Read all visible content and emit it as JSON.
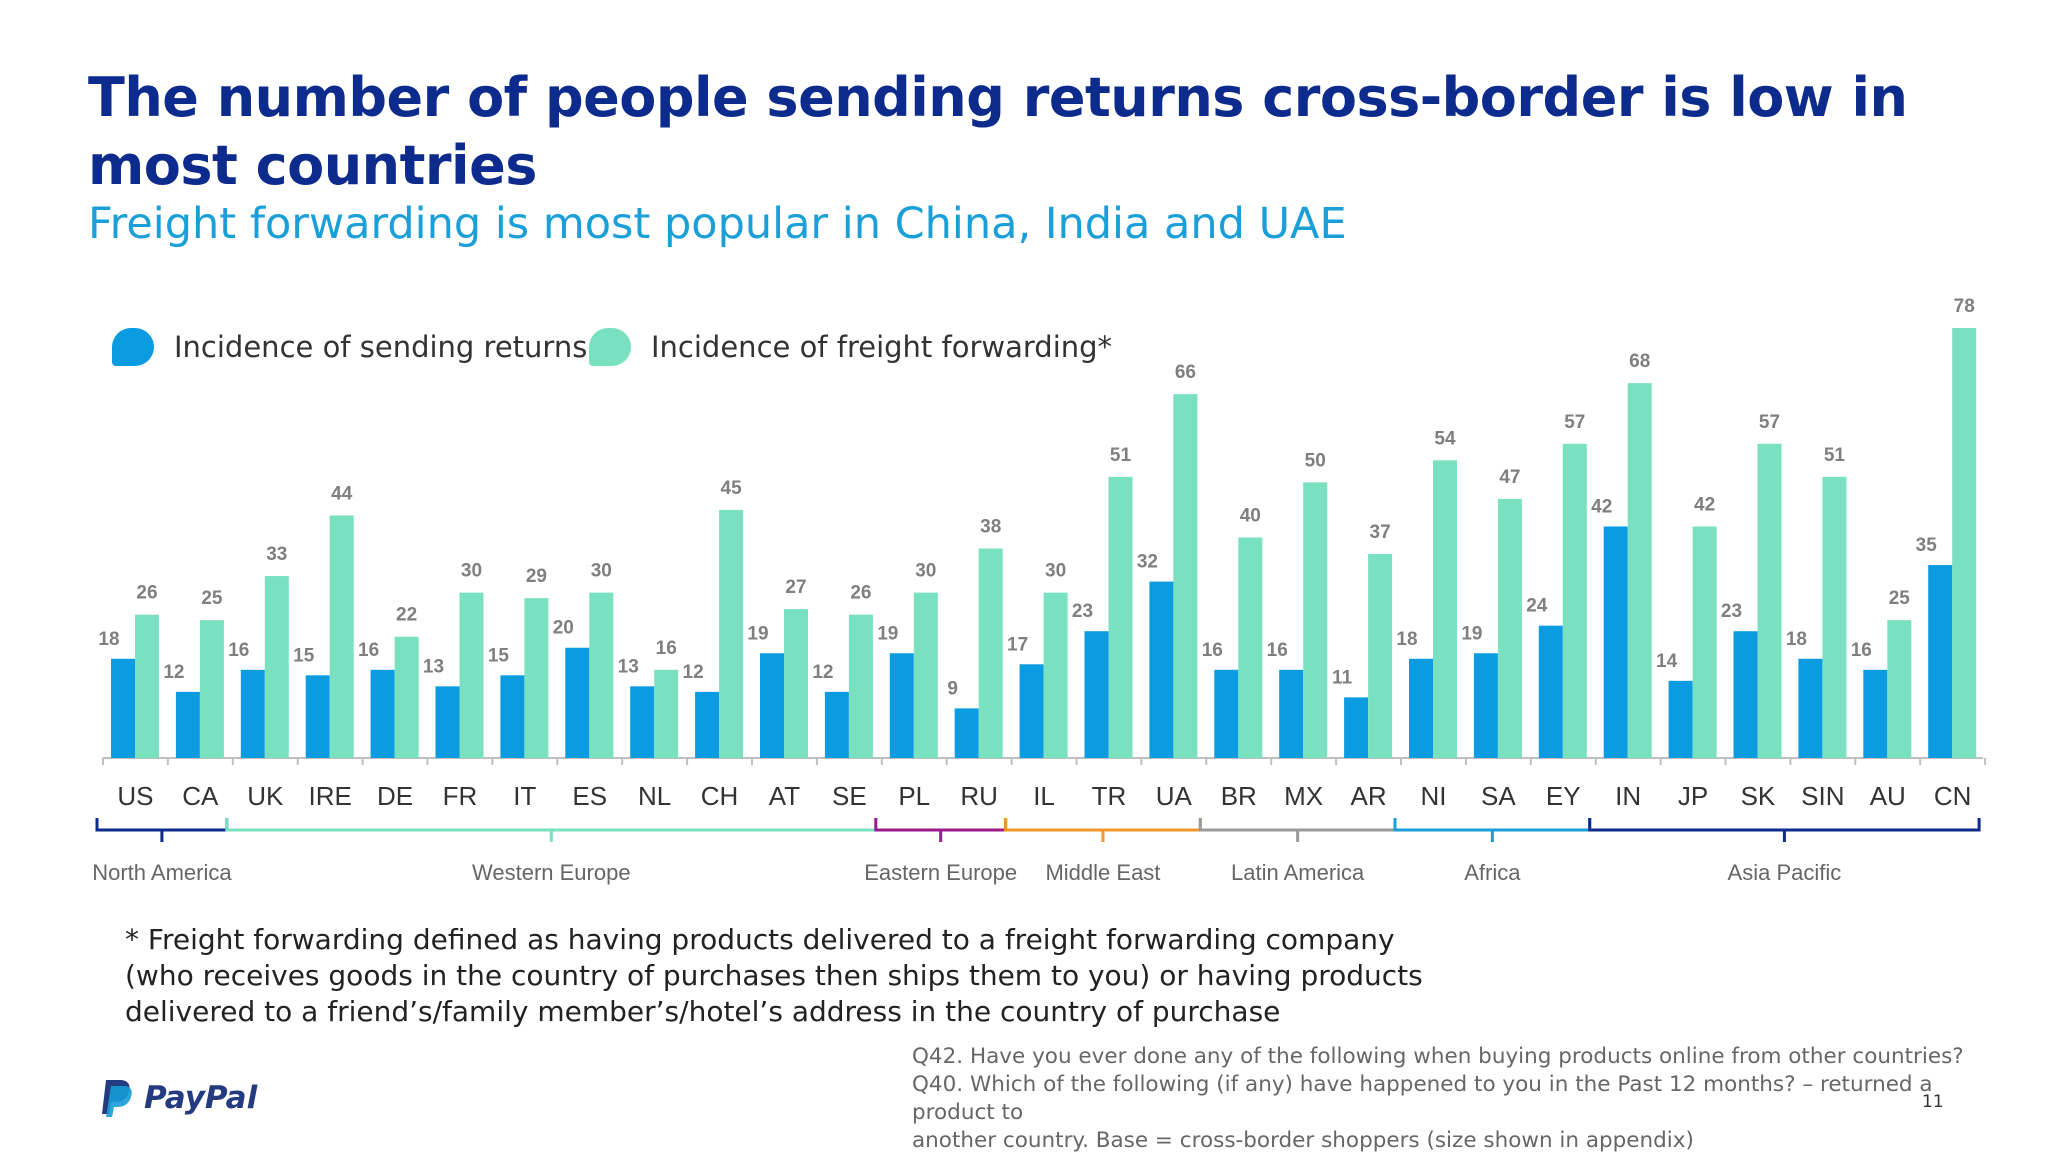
{
  "header": {
    "title": "The number of people sending returns cross-border is low in most countries",
    "subtitle": "Freight forwarding is most popular in China, India and UAE"
  },
  "colors": {
    "title": "#0d2b8c",
    "subtitle": "#1a9fd8",
    "returns": "#0a9be0",
    "freight": "#79e0c0",
    "value_label": "#7f7f7f"
  },
  "footnote": "* Freight forwarding defined as having products delivered to a freight forwarding company (who receives goods in the country of purchases then ships them to you) or having products delivered to a friend’s/family member’s/hotel’s address in the country of purchase",
  "question_note": [
    "Q42. Have you ever done any of the following when buying products online from other countries?",
    "Q40. Which of the following (if any) have happened to you in the Past 12 months? – returned a product to",
    "another country. Base  = cross-border shoppers  (size shown in appendix)"
  ],
  "page_number": "11",
  "logo": {
    "text": "PayPal",
    "icon": "paypal-p-icon"
  },
  "chart_data": {
    "type": "bar",
    "categories": [
      "US",
      "CA",
      "UK",
      "IRE",
      "DE",
      "FR",
      "IT",
      "ES",
      "NL",
      "CH",
      "AT",
      "SE",
      "PL",
      "RU",
      "IL",
      "TR",
      "UA",
      "BR",
      "MX",
      "AR",
      "NI",
      "SA",
      "EY",
      "IN",
      "JP",
      "SK",
      "SIN",
      "AU",
      "CN"
    ],
    "series": [
      {
        "name": "Incidence of sending returns",
        "values": [
          18,
          12,
          16,
          15,
          16,
          13,
          15,
          20,
          13,
          12,
          19,
          12,
          19,
          9,
          17,
          23,
          32,
          16,
          16,
          11,
          18,
          19,
          24,
          42,
          14,
          23,
          18,
          16,
          35
        ]
      },
      {
        "name": "Incidence of freight forwarding*",
        "values": [
          26,
          25,
          33,
          44,
          22,
          30,
          29,
          30,
          16,
          45,
          27,
          26,
          30,
          38,
          30,
          51,
          66,
          40,
          50,
          37,
          54,
          47,
          57,
          68,
          42,
          57,
          51,
          25,
          78
        ]
      }
    ],
    "legend": "top-left",
    "grid": false,
    "ylim": [
      0,
      80
    ],
    "regions": [
      {
        "name": "North America",
        "from": 0,
        "to": 1,
        "color": "#0d2b8c"
      },
      {
        "name": "Western Europe",
        "from": 2,
        "to": 11,
        "color": "#79e0c0"
      },
      {
        "name": "Eastern Europe",
        "from": 12,
        "to": 13,
        "color": "#9b1b8e"
      },
      {
        "name": "Middle East",
        "from": 14,
        "to": 16,
        "color": "#f0962a"
      },
      {
        "name": "Latin America",
        "from": 17,
        "to": 19,
        "color": "#9a9a9a"
      },
      {
        "name": "Africa",
        "from": 20,
        "to": 22,
        "color": "#1a9fd8"
      },
      {
        "name": "Asia Pacific",
        "from": 23,
        "to": 28,
        "color": "#0d2b8c"
      }
    ]
  }
}
